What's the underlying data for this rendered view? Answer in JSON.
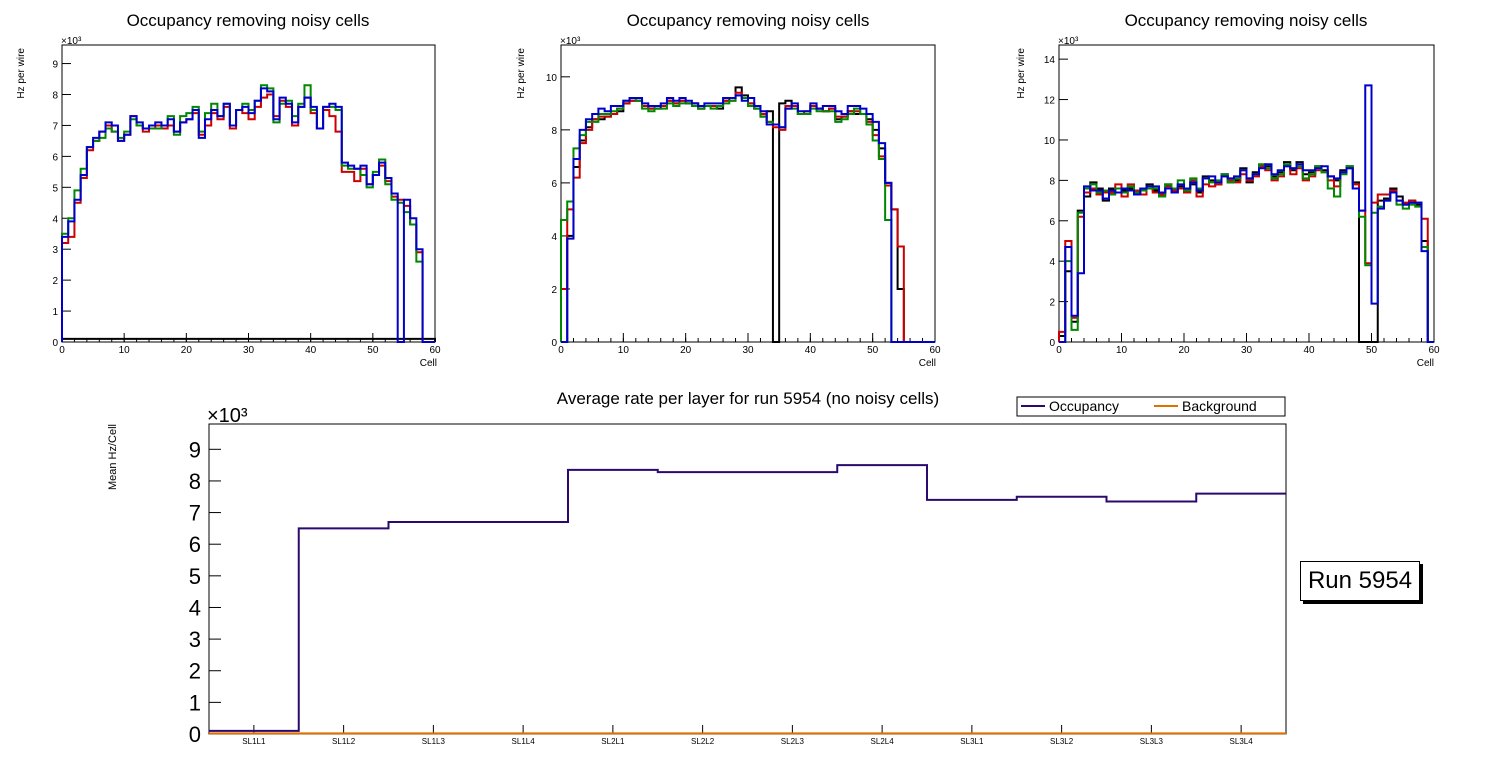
{
  "colors": {
    "black": "#000000",
    "red": "#cc0000",
    "green": "#008800",
    "blue": "#0000cc",
    "occupancy": "#2a0a6e",
    "background": "#e07000"
  },
  "run_label": "Run 5954",
  "chart_data": [
    {
      "type": "step",
      "title": "Occupancy removing noisy cells",
      "xlabel": "Cell",
      "ylabel": "Hz per wire",
      "exponent": "×10³",
      "xlim": [
        0,
        60
      ],
      "ylim": [
        0,
        9.6
      ],
      "xticks": [
        0,
        10,
        20,
        30,
        40,
        50,
        60
      ],
      "yticks": [
        0,
        1,
        2,
        3,
        4,
        5,
        6,
        7,
        8,
        9
      ],
      "series": [
        {
          "name": "black",
          "values": [
            0.1,
            0.1,
            0.1,
            0.1,
            0.1,
            0.1,
            0.1,
            0.1,
            0.1,
            0.1,
            0.1,
            0.1,
            0.1,
            0.1,
            0.1,
            0.1,
            0.1,
            0.1,
            0.1,
            0.1,
            0.1,
            0.1,
            0.1,
            0.1,
            0.1,
            0.1,
            0.1,
            0.1,
            0.1,
            0.1,
            0.1,
            0.1,
            0.1,
            0.1,
            0.1,
            0.1,
            0.1,
            0.1,
            0.1,
            0.1,
            0.1,
            0.1,
            0.1,
            0.1,
            0.1,
            0.1,
            0.1,
            0.1,
            0.1,
            0.1,
            0.1,
            0.1,
            0.1,
            0.1,
            0.1,
            0.1,
            0.1,
            0.1,
            0.1,
            0.1
          ]
        },
        {
          "name": "red",
          "values": [
            3.2,
            3.4,
            4.5,
            5.3,
            6.2,
            6.5,
            6.8,
            7.0,
            6.8,
            6.5,
            6.7,
            7.3,
            7.0,
            6.8,
            6.9,
            7.0,
            6.9,
            7.0,
            6.8,
            7.1,
            7.2,
            7.4,
            6.7,
            7.0,
            7.4,
            7.2,
            7.6,
            6.9,
            7.5,
            7.4,
            7.2,
            7.6,
            7.9,
            8.0,
            7.3,
            7.8,
            7.6,
            7.0,
            7.6,
            7.9,
            7.4,
            6.9,
            7.5,
            7.3,
            6.8,
            5.5,
            5.5,
            5.2,
            5.6,
            5.1,
            5.4,
            5.7,
            5.2,
            4.7,
            4.6,
            4.4,
            3.8,
            2.9,
            0.0,
            0.0
          ]
        },
        {
          "name": "green",
          "values": [
            3.5,
            4.0,
            4.9,
            5.6,
            6.3,
            6.5,
            6.6,
            6.9,
            6.8,
            6.6,
            6.8,
            7.2,
            7.0,
            6.9,
            6.9,
            6.9,
            7.0,
            7.3,
            6.7,
            7.3,
            7.4,
            7.6,
            6.8,
            7.4,
            7.7,
            7.3,
            7.7,
            7.0,
            7.5,
            7.7,
            7.5,
            7.8,
            8.3,
            8.2,
            7.1,
            7.7,
            7.8,
            7.3,
            7.7,
            8.3,
            7.5,
            6.9,
            7.6,
            7.6,
            7.5,
            5.7,
            5.6,
            5.6,
            5.4,
            5.0,
            5.5,
            5.9,
            5.1,
            4.6,
            4.5,
            4.2,
            3.8,
            2.6,
            0.0,
            0.0
          ]
        },
        {
          "name": "blue",
          "values": [
            3.4,
            3.9,
            4.6,
            5.4,
            6.3,
            6.6,
            6.8,
            7.1,
            7.0,
            6.5,
            6.7,
            7.3,
            7.1,
            6.9,
            7.0,
            7.1,
            7.0,
            7.2,
            6.8,
            7.1,
            7.2,
            7.5,
            6.6,
            7.2,
            7.5,
            7.3,
            7.7,
            7.0,
            7.5,
            7.6,
            7.4,
            7.8,
            8.2,
            8.1,
            7.2,
            7.9,
            7.7,
            7.1,
            7.6,
            7.9,
            7.6,
            6.9,
            7.6,
            7.7,
            7.6,
            5.8,
            5.7,
            5.6,
            5.7,
            5.1,
            5.4,
            5.8,
            5.3,
            4.8,
            0.0,
            4.6,
            4.0,
            3.0,
            0.0,
            0.0
          ]
        }
      ]
    },
    {
      "type": "step",
      "title": "Occupancy removing noisy cells",
      "xlabel": "Cell",
      "ylabel": "Hz per wire",
      "exponent": "×10³",
      "xlim": [
        0,
        60
      ],
      "ylim": [
        0,
        11.2
      ],
      "xticks": [
        0,
        10,
        20,
        30,
        40,
        50,
        60
      ],
      "yticks": [
        0,
        2,
        4,
        6,
        8,
        10
      ],
      "series": [
        {
          "name": "black",
          "values": [
            0.0,
            4.0,
            6.6,
            7.6,
            8.1,
            8.4,
            8.4,
            8.5,
            8.6,
            8.7,
            9.0,
            9.1,
            9.1,
            8.9,
            8.8,
            8.8,
            8.9,
            9.1,
            9.0,
            9.1,
            9.0,
            9.0,
            8.8,
            8.9,
            8.9,
            8.8,
            9.1,
            9.2,
            9.6,
            9.3,
            9.0,
            8.8,
            8.5,
            8.7,
            0.0,
            9.0,
            9.1,
            8.9,
            8.6,
            8.6,
            8.9,
            8.8,
            8.7,
            8.8,
            8.4,
            8.5,
            8.7,
            8.6,
            8.6,
            8.4,
            8.0,
            7.3,
            6.0,
            5.0,
            2.0,
            0.0,
            0.0,
            0.0,
            0.0,
            0.0
          ]
        },
        {
          "name": "red",
          "values": [
            2.0,
            5.0,
            6.2,
            7.5,
            8.0,
            8.4,
            8.5,
            8.5,
            8.6,
            8.8,
            9.0,
            9.1,
            9.1,
            8.9,
            8.8,
            8.9,
            8.9,
            9.1,
            9.0,
            9.1,
            9.0,
            9.0,
            8.8,
            8.9,
            8.9,
            8.9,
            9.1,
            9.1,
            9.4,
            9.2,
            9.0,
            8.9,
            8.6,
            8.3,
            8.1,
            8.0,
            8.9,
            8.9,
            8.6,
            8.7,
            8.9,
            8.8,
            8.7,
            8.8,
            8.5,
            8.5,
            8.7,
            8.7,
            8.6,
            8.3,
            7.8,
            7.0,
            5.9,
            5.0,
            3.6,
            0.0,
            0.0,
            0.0,
            0.0,
            0.0
          ]
        },
        {
          "name": "green",
          "values": [
            4.6,
            5.3,
            7.3,
            7.8,
            8.3,
            8.3,
            8.6,
            8.6,
            8.7,
            8.8,
            9.1,
            9.2,
            9.1,
            8.8,
            8.7,
            8.8,
            8.8,
            9.0,
            8.9,
            9.0,
            9.0,
            8.9,
            8.8,
            8.9,
            8.8,
            8.9,
            9.0,
            9.1,
            9.3,
            9.2,
            8.9,
            8.8,
            8.5,
            8.3,
            8.2,
            8.1,
            8.8,
            8.8,
            8.6,
            8.6,
            8.8,
            8.7,
            8.7,
            8.7,
            8.3,
            8.4,
            8.6,
            8.8,
            8.6,
            8.2,
            7.6,
            6.9,
            4.6,
            0.0,
            0.0,
            0.0,
            0.0,
            0.0,
            0.0,
            0.0
          ]
        },
        {
          "name": "blue",
          "values": [
            0.0,
            3.9,
            6.9,
            8.0,
            8.4,
            8.6,
            8.8,
            8.7,
            8.9,
            8.9,
            9.1,
            9.2,
            9.2,
            9.0,
            8.9,
            8.9,
            9.0,
            9.2,
            9.1,
            9.2,
            9.1,
            9.0,
            8.9,
            9.0,
            9.0,
            9.0,
            9.2,
            9.2,
            9.3,
            9.1,
            9.2,
            8.9,
            8.7,
            8.2,
            8.2,
            8.1,
            8.8,
            9.0,
            8.7,
            8.7,
            9.0,
            8.8,
            8.9,
            8.9,
            8.7,
            8.6,
            8.9,
            8.9,
            8.8,
            8.6,
            8.3,
            7.5,
            6.0,
            0.0,
            0.0,
            0.0,
            0.0,
            0.0,
            0.0,
            0.0
          ]
        }
      ]
    },
    {
      "type": "step",
      "title": "Occupancy removing noisy cells",
      "xlabel": "Cell",
      "ylabel": "Hz per wire",
      "exponent": "×10³",
      "xlim": [
        0,
        60
      ],
      "ylim": [
        0,
        14.7
      ],
      "xticks": [
        0,
        10,
        20,
        30,
        40,
        50,
        60
      ],
      "yticks": [
        0,
        2,
        4,
        6,
        8,
        10,
        12,
        14
      ],
      "series": [
        {
          "name": "black",
          "values": [
            0.3,
            3.5,
            1.0,
            6.5,
            7.2,
            7.9,
            7.6,
            7.0,
            7.6,
            7.6,
            7.5,
            7.6,
            7.4,
            7.5,
            7.8,
            7.5,
            7.4,
            7.8,
            7.4,
            7.7,
            7.6,
            7.8,
            7.4,
            8.2,
            8.0,
            7.8,
            8.3,
            7.9,
            8.0,
            8.6,
            7.9,
            8.4,
            8.7,
            8.7,
            8.2,
            8.4,
            8.9,
            8.5,
            8.9,
            8.3,
            8.4,
            8.7,
            8.5,
            8.2,
            8.0,
            8.5,
            8.7,
            7.9,
            0.0,
            0.0,
            0.0,
            7.0,
            7.1,
            7.6,
            7.2,
            6.8,
            7.0,
            6.8,
            5.0,
            0.0
          ]
        },
        {
          "name": "red",
          "values": [
            0.5,
            5.0,
            1.2,
            6.2,
            7.4,
            7.6,
            7.3,
            7.4,
            7.4,
            7.8,
            7.2,
            7.8,
            7.5,
            7.3,
            7.6,
            7.4,
            7.3,
            7.7,
            7.5,
            7.6,
            7.4,
            8.0,
            7.2,
            7.8,
            7.7,
            7.8,
            8.2,
            8.0,
            7.9,
            8.3,
            8.0,
            8.2,
            8.7,
            8.5,
            8.0,
            8.2,
            8.7,
            8.3,
            8.6,
            8.0,
            8.2,
            8.5,
            8.4,
            8.0,
            7.7,
            8.4,
            8.6,
            7.8,
            6.5,
            3.9,
            6.9,
            7.3,
            7.3,
            7.5,
            7.0,
            6.9,
            7.0,
            6.9,
            6.1,
            0.0
          ]
        },
        {
          "name": "green",
          "values": [
            0.0,
            4.0,
            0.6,
            6.4,
            7.6,
            7.8,
            7.4,
            7.5,
            7.3,
            7.6,
            7.4,
            7.7,
            7.4,
            7.5,
            7.6,
            7.6,
            7.2,
            7.8,
            7.6,
            8.0,
            7.5,
            8.1,
            7.6,
            8.1,
            7.9,
            8.0,
            8.3,
            7.9,
            8.1,
            8.5,
            8.1,
            8.3,
            8.8,
            8.6,
            8.1,
            8.3,
            8.8,
            8.6,
            8.7,
            8.1,
            8.3,
            8.7,
            8.4,
            7.6,
            7.2,
            8.3,
            8.7,
            7.6,
            6.2,
            3.8,
            6.4,
            6.7,
            7.0,
            7.4,
            6.8,
            6.6,
            6.8,
            6.7,
            4.7,
            0.0
          ]
        },
        {
          "name": "blue",
          "values": [
            0.0,
            4.7,
            1.3,
            3.4,
            7.7,
            7.5,
            7.5,
            7.1,
            7.5,
            7.4,
            7.6,
            7.5,
            7.3,
            7.6,
            7.7,
            7.7,
            7.4,
            7.6,
            7.4,
            7.8,
            7.6,
            7.9,
            7.5,
            8.1,
            8.2,
            7.9,
            8.2,
            8.1,
            8.2,
            8.5,
            8.1,
            8.3,
            8.6,
            8.8,
            8.3,
            8.5,
            8.7,
            8.6,
            8.8,
            8.5,
            8.5,
            8.6,
            8.7,
            8.2,
            8.1,
            8.4,
            8.6,
            7.6,
            6.5,
            12.7,
            1.9,
            6.6,
            7.0,
            7.4,
            7.0,
            6.8,
            6.9,
            6.9,
            4.5,
            0.0
          ]
        }
      ]
    },
    {
      "type": "step",
      "title": "Average rate per layer for run 5954 (no noisy cells)",
      "ylabel": "Mean Hz/Cell",
      "exponent": "×10³",
      "ylim": [
        0,
        9.8
      ],
      "yticks": [
        0,
        1,
        2,
        3,
        4,
        5,
        6,
        7,
        8,
        9
      ],
      "categories": [
        "SL1L1",
        "SL1L2",
        "SL1L3",
        "SL1L4",
        "SL2L1",
        "SL2L2",
        "SL2L3",
        "SL2L4",
        "SL3L1",
        "SL3L2",
        "SL3L3",
        "SL3L4"
      ],
      "series": [
        {
          "name": "Occupancy",
          "values": [
            0.1,
            6.5,
            6.7,
            6.7,
            8.35,
            8.28,
            8.28,
            8.5,
            7.4,
            7.5,
            7.35,
            7.6
          ]
        },
        {
          "name": "Background",
          "values": [
            0.02,
            0.02,
            0.02,
            0.02,
            0.02,
            0.02,
            0.02,
            0.02,
            0.02,
            0.02,
            0.02,
            0.02
          ]
        }
      ],
      "legend": [
        "Occupancy",
        "Background"
      ],
      "legend_position": "top-right"
    }
  ]
}
